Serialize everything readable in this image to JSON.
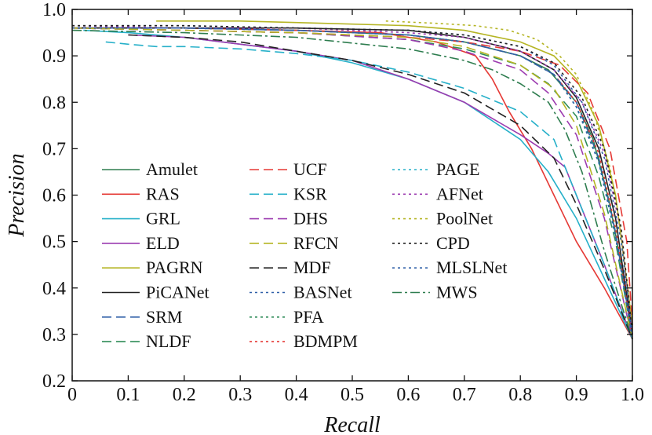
{
  "chart_data": {
    "type": "line",
    "title": "",
    "xlabel": "Recall",
    "ylabel": "Precision",
    "xlim": [
      0,
      1
    ],
    "ylim": [
      0.2,
      1.0
    ],
    "xticks": [
      {
        "value": 0,
        "label": "0"
      },
      {
        "value": 0.1,
        "label": "0.1"
      },
      {
        "value": 0.2,
        "label": "0.2"
      },
      {
        "value": 0.3,
        "label": "0.3"
      },
      {
        "value": 0.4,
        "label": "0.4"
      },
      {
        "value": 0.5,
        "label": "0.5"
      },
      {
        "value": 0.6,
        "label": "0.6"
      },
      {
        "value": 0.7,
        "label": "0.7"
      },
      {
        "value": 0.8,
        "label": "0.8"
      },
      {
        "value": 0.9,
        "label": "0.9"
      },
      {
        "value": 1.0,
        "label": "1.0"
      }
    ],
    "yticks": [
      {
        "value": 0.2,
        "label": "0.2"
      },
      {
        "value": 0.3,
        "label": "0.3"
      },
      {
        "value": 0.4,
        "label": "0.4"
      },
      {
        "value": 0.5,
        "label": "0.5"
      },
      {
        "value": 0.6,
        "label": "0.6"
      },
      {
        "value": 0.7,
        "label": "0.7"
      },
      {
        "value": 0.8,
        "label": "0.8"
      },
      {
        "value": 0.9,
        "label": "0.9"
      },
      {
        "value": 1.0,
        "label": "1.0"
      }
    ],
    "grid": false,
    "legend": {
      "position": "lower-left",
      "columns": 3
    },
    "series": [
      {
        "name": "Amulet",
        "color": "#2e7d4f",
        "dash": "solid",
        "x": [
          0.0,
          0.2,
          0.4,
          0.6,
          0.7,
          0.8,
          0.85,
          0.9,
          0.93,
          0.96,
          0.98,
          1.0
        ],
        "y": [
          0.96,
          0.96,
          0.955,
          0.945,
          0.93,
          0.9,
          0.87,
          0.8,
          0.72,
          0.58,
          0.45,
          0.29
        ]
      },
      {
        "name": "RAS",
        "color": "#e53935",
        "dash": "solid",
        "x": [
          0.0,
          0.2,
          0.4,
          0.55,
          0.65,
          0.72,
          0.75,
          0.78,
          0.82,
          0.86,
          0.9,
          0.95,
          1.0
        ],
        "y": [
          0.96,
          0.96,
          0.955,
          0.95,
          0.93,
          0.9,
          0.85,
          0.78,
          0.7,
          0.6,
          0.5,
          0.4,
          0.29
        ]
      },
      {
        "name": "GRL",
        "color": "#26b0c9",
        "dash": "solid",
        "x": [
          0.02,
          0.1,
          0.2,
          0.3,
          0.4,
          0.5,
          0.6,
          0.7,
          0.8,
          0.85,
          0.9,
          0.95,
          1.0
        ],
        "y": [
          0.955,
          0.95,
          0.94,
          0.925,
          0.91,
          0.885,
          0.85,
          0.8,
          0.72,
          0.65,
          0.55,
          0.42,
          0.29
        ]
      },
      {
        "name": "ELD",
        "color": "#9c3bb0",
        "dash": "solid",
        "x": [
          0.1,
          0.2,
          0.3,
          0.4,
          0.5,
          0.6,
          0.7,
          0.8,
          0.85,
          0.88,
          0.9,
          0.95,
          1.0
        ],
        "y": [
          0.945,
          0.94,
          0.925,
          0.91,
          0.89,
          0.85,
          0.8,
          0.73,
          0.69,
          0.66,
          0.6,
          0.45,
          0.29
        ]
      },
      {
        "name": "PAGRN",
        "color": "#b5b524",
        "dash": "solid",
        "x": [
          0.15,
          0.3,
          0.45,
          0.6,
          0.7,
          0.8,
          0.86,
          0.9,
          0.94,
          0.97,
          1.0
        ],
        "y": [
          0.975,
          0.975,
          0.97,
          0.965,
          0.955,
          0.93,
          0.9,
          0.85,
          0.75,
          0.6,
          0.32
        ]
      },
      {
        "name": "PiCANet",
        "color": "#222222",
        "dash": "solid",
        "x": [
          0.0,
          0.2,
          0.4,
          0.6,
          0.7,
          0.8,
          0.86,
          0.9,
          0.94,
          0.97,
          1.0
        ],
        "y": [
          0.96,
          0.96,
          0.96,
          0.955,
          0.94,
          0.91,
          0.87,
          0.81,
          0.7,
          0.55,
          0.3
        ]
      },
      {
        "name": "SRM",
        "color": "#2f5fa8",
        "dash": "12,6",
        "x": [
          0.0,
          0.2,
          0.4,
          0.6,
          0.7,
          0.8,
          0.86,
          0.9,
          0.94,
          0.97,
          1.0
        ],
        "y": [
          0.96,
          0.96,
          0.955,
          0.945,
          0.93,
          0.9,
          0.86,
          0.8,
          0.68,
          0.52,
          0.29
        ]
      },
      {
        "name": "NLDF",
        "color": "#2e8b57",
        "dash": "12,6",
        "x": [
          0.0,
          0.2,
          0.4,
          0.6,
          0.7,
          0.8,
          0.85,
          0.9,
          0.94,
          0.97,
          1.0
        ],
        "y": [
          0.96,
          0.955,
          0.95,
          0.935,
          0.915,
          0.88,
          0.84,
          0.77,
          0.64,
          0.5,
          0.29
        ]
      },
      {
        "name": "UCF",
        "color": "#e53935",
        "dash": "12,6",
        "x": [
          0.0,
          0.2,
          0.4,
          0.6,
          0.7,
          0.8,
          0.87,
          0.92,
          0.96,
          0.99,
          1.0
        ],
        "y": [
          0.96,
          0.955,
          0.95,
          0.94,
          0.93,
          0.91,
          0.88,
          0.82,
          0.7,
          0.5,
          0.32
        ]
      },
      {
        "name": "KSR",
        "color": "#26b0c9",
        "dash": "12,6",
        "x": [
          0.06,
          0.1,
          0.15,
          0.2,
          0.3,
          0.4,
          0.5,
          0.6,
          0.7,
          0.8,
          0.86,
          0.9,
          0.95,
          1.0
        ],
        "y": [
          0.93,
          0.925,
          0.92,
          0.92,
          0.915,
          0.905,
          0.89,
          0.865,
          0.83,
          0.78,
          0.72,
          0.6,
          0.45,
          0.29
        ]
      },
      {
        "name": "DHS",
        "color": "#9c3bb0",
        "dash": "12,6",
        "x": [
          0.0,
          0.2,
          0.4,
          0.6,
          0.7,
          0.8,
          0.85,
          0.9,
          0.95,
          1.0
        ],
        "y": [
          0.96,
          0.955,
          0.95,
          0.935,
          0.91,
          0.87,
          0.82,
          0.73,
          0.55,
          0.29
        ]
      },
      {
        "name": "RFCN",
        "color": "#b5b524",
        "dash": "12,6",
        "x": [
          0.0,
          0.2,
          0.4,
          0.6,
          0.7,
          0.8,
          0.86,
          0.9,
          0.95,
          1.0
        ],
        "y": [
          0.96,
          0.955,
          0.95,
          0.94,
          0.92,
          0.88,
          0.83,
          0.75,
          0.56,
          0.29
        ]
      },
      {
        "name": "MDF",
        "color": "#222222",
        "dash": "12,6",
        "x": [
          0.1,
          0.2,
          0.3,
          0.4,
          0.5,
          0.6,
          0.7,
          0.8,
          0.86,
          0.9,
          0.95,
          1.0
        ],
        "y": [
          0.945,
          0.94,
          0.93,
          0.91,
          0.89,
          0.86,
          0.82,
          0.75,
          0.68,
          0.58,
          0.44,
          0.29
        ]
      },
      {
        "name": "BASNet",
        "color": "#2f5fa8",
        "dash": "3,4",
        "x": [
          0.0,
          0.2,
          0.4,
          0.6,
          0.7,
          0.8,
          0.86,
          0.91,
          0.95,
          0.98,
          1.0
        ],
        "y": [
          0.965,
          0.965,
          0.96,
          0.955,
          0.945,
          0.92,
          0.88,
          0.8,
          0.68,
          0.5,
          0.3
        ]
      },
      {
        "name": "PFA",
        "color": "#2e8b57",
        "dash": "3,4",
        "x": [
          0.0,
          0.2,
          0.4,
          0.6,
          0.7,
          0.8,
          0.86,
          0.9,
          0.94,
          0.97,
          1.0
        ],
        "y": [
          0.96,
          0.96,
          0.955,
          0.945,
          0.93,
          0.9,
          0.86,
          0.79,
          0.68,
          0.52,
          0.29
        ]
      },
      {
        "name": "BDMPM",
        "color": "#e53935",
        "dash": "3,4",
        "x": [
          0.0,
          0.2,
          0.4,
          0.6,
          0.7,
          0.8,
          0.86,
          0.9,
          0.94,
          0.97,
          1.0
        ],
        "y": [
          0.96,
          0.96,
          0.955,
          0.945,
          0.93,
          0.9,
          0.86,
          0.8,
          0.69,
          0.53,
          0.29
        ]
      },
      {
        "name": "PAGE",
        "color": "#26b0c9",
        "dash": "3,4",
        "x": [
          0.0,
          0.2,
          0.4,
          0.6,
          0.7,
          0.8,
          0.86,
          0.9,
          0.94,
          0.97,
          1.0
        ],
        "y": [
          0.96,
          0.96,
          0.955,
          0.945,
          0.93,
          0.9,
          0.86,
          0.79,
          0.67,
          0.51,
          0.29
        ]
      },
      {
        "name": "AFNet",
        "color": "#9c3bb0",
        "dash": "3,4",
        "x": [
          0.0,
          0.2,
          0.4,
          0.6,
          0.7,
          0.8,
          0.86,
          0.91,
          0.95,
          0.98,
          1.0
        ],
        "y": [
          0.965,
          0.96,
          0.96,
          0.95,
          0.94,
          0.91,
          0.87,
          0.8,
          0.69,
          0.52,
          0.3
        ]
      },
      {
        "name": "PoolNet",
        "color": "#b5b524",
        "dash": "3,4",
        "x": [
          0.56,
          0.65,
          0.72,
          0.78,
          0.83,
          0.87,
          0.9,
          0.93,
          0.96,
          0.98,
          1.0
        ],
        "y": [
          0.975,
          0.97,
          0.965,
          0.955,
          0.935,
          0.9,
          0.86,
          0.78,
          0.66,
          0.52,
          0.32
        ]
      },
      {
        "name": "CPD",
        "color": "#222222",
        "dash": "3,4",
        "x": [
          0.0,
          0.2,
          0.4,
          0.6,
          0.7,
          0.8,
          0.86,
          0.91,
          0.95,
          0.98,
          1.0
        ],
        "y": [
          0.965,
          0.965,
          0.96,
          0.955,
          0.945,
          0.92,
          0.885,
          0.81,
          0.7,
          0.53,
          0.3
        ]
      },
      {
        "name": "MLSLNet",
        "color": "#2f5fa8",
        "dash": "3,4",
        "x": [
          0.0,
          0.2,
          0.4,
          0.6,
          0.7,
          0.8,
          0.86,
          0.9,
          0.94,
          0.97,
          1.0
        ],
        "y": [
          0.96,
          0.96,
          0.955,
          0.945,
          0.93,
          0.9,
          0.86,
          0.79,
          0.67,
          0.51,
          0.29
        ]
      },
      {
        "name": "MWS",
        "color": "#2e7d4f",
        "dash": "12,4,3,4",
        "x": [
          0.0,
          0.2,
          0.4,
          0.6,
          0.7,
          0.75,
          0.8,
          0.85,
          0.88,
          0.91,
          0.95,
          1.0
        ],
        "y": [
          0.955,
          0.95,
          0.94,
          0.915,
          0.89,
          0.87,
          0.84,
          0.8,
          0.74,
          0.65,
          0.48,
          0.29
        ]
      }
    ]
  }
}
